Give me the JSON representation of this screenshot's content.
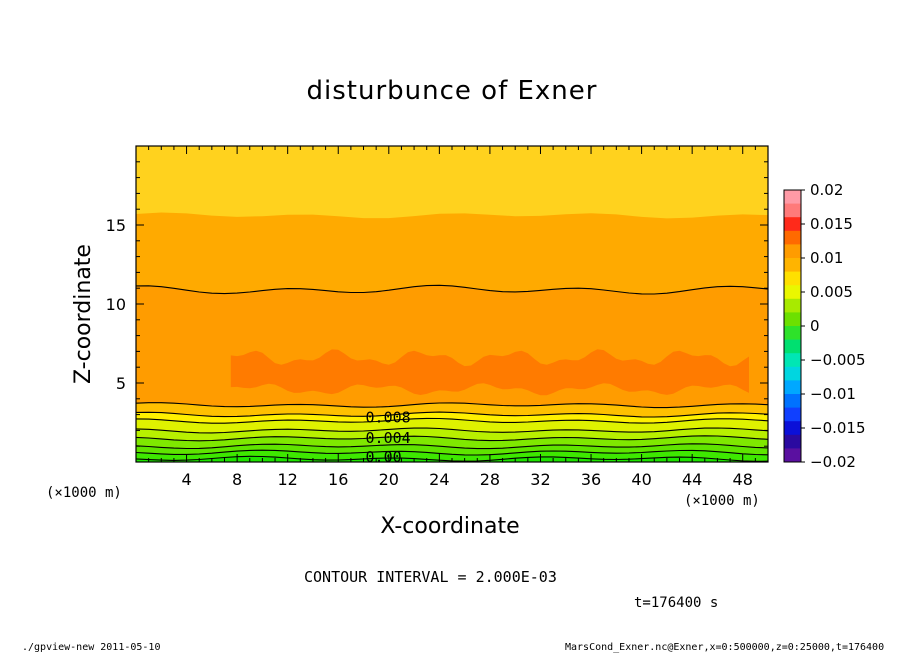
{
  "colors": {
    "band_0_002": "#ffd21e",
    "band_0_008": "#ff9c00",
    "band_0_010": "#ff7b00",
    "band_low_1": "#b8f000",
    "band_low_2": "#7fe800",
    "band_low_3": "#3ee800",
    "band_low_4": "#1fe300",
    "contour": "#000000"
  },
  "chart_data": {
    "type": "contour",
    "title": "disturbunce of Exner",
    "xlabel": "X-coordinate",
    "ylabel": "Z-coordinate",
    "x_unit_left": "(×1000 m)",
    "x_unit_right": "(×1000 m)",
    "xlim": [
      0,
      50
    ],
    "ylim": [
      0,
      20
    ],
    "xticks": [
      4,
      8,
      12,
      16,
      20,
      24,
      28,
      32,
      36,
      40,
      44,
      48
    ],
    "yticks": [
      5,
      10,
      15
    ],
    "contour_interval_text": "CONTOUR INTERVAL = 2.000E-03",
    "time_text": "t=176400 s",
    "contour_labels": [
      {
        "text": "0.008",
        "x": 18,
        "z": 2.7
      },
      {
        "text": "0.004",
        "x": 18,
        "z": 1.4
      },
      {
        "text": "0.00",
        "x": 18,
        "z": 0.2
      }
    ],
    "regions": [
      {
        "name": "upper",
        "z_top": 20,
        "z_bottom": 15.6
      },
      {
        "name": "mid",
        "z_top": 15.6,
        "z_bottom": 10.9
      },
      {
        "name": "lower",
        "z_top": 10.9,
        "z_bottom": 3.6
      },
      {
        "name": "core",
        "x_from": 7.5,
        "x_to": 48.5,
        "z_low": 4.6,
        "z_high": 6.9
      }
    ],
    "contour_lines_z": [
      10.9,
      3.6,
      3.0,
      2.6,
      2.0,
      1.5,
      1.0,
      0.6,
      0.2
    ],
    "colorbar": {
      "min": -0.02,
      "max": 0.02,
      "labels": [
        "0.02",
        "0.015",
        "0.01",
        "0.005",
        "0",
        "−0.005",
        "−0.01",
        "−0.015",
        "−0.02"
      ],
      "colors": [
        "#ff9aa6",
        "#ff7a7a",
        "#ff2a1a",
        "#ff6a00",
        "#ff9c00",
        "#ffb400",
        "#ffe000",
        "#eaf700",
        "#a8ea00",
        "#6ce000",
        "#2ee22a",
        "#00e070",
        "#00e6b4",
        "#00d6e0",
        "#00a8ff",
        "#0072ff",
        "#1040ff",
        "#0b10d8",
        "#2a0aa0",
        "#5a10a0"
      ]
    }
  },
  "footer": {
    "left": "./gpview-new   2011-05-10",
    "right": "MarsCond_Exner.nc@Exner,x=0:500000,z=0:25000,t=176400"
  }
}
